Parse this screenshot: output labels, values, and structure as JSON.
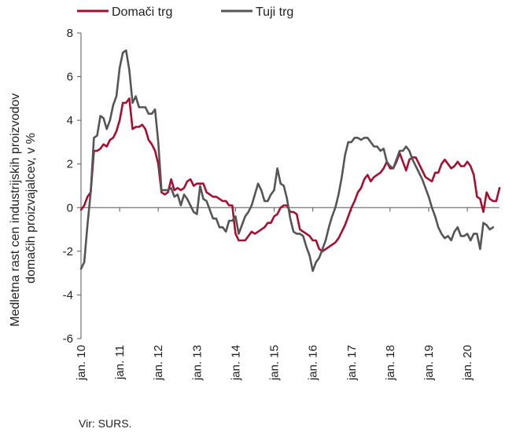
{
  "chart_data": {
    "type": "line",
    "xlabel": "",
    "ylabel": "Medletna rast cen industrijskih proizvodov domačih proizvajalcev, v %",
    "ylabel_lines": [
      "Medletna rast cen industrijskih proizvodov",
      "domačih proizvajalcev, v %"
    ],
    "ylim": [
      -6,
      8
    ],
    "yticks": [
      -6,
      -4,
      -2,
      0,
      2,
      4,
      6,
      8
    ],
    "xlim": [
      0,
      130
    ],
    "xticks": [
      {
        "label": "jan. 10",
        "x": 0
      },
      {
        "label": "jan. 11",
        "x": 12
      },
      {
        "label": "jan. 12",
        "x": 24
      },
      {
        "label": "jan. 13",
        "x": 36
      },
      {
        "label": "jan. 14",
        "x": 48
      },
      {
        "label": "jan. 15",
        "x": 60
      },
      {
        "label": "jan. 16",
        "x": 72
      },
      {
        "label": "jan. 17",
        "x": 84
      },
      {
        "label": "jan. 18",
        "x": 96
      },
      {
        "label": "jan. 19",
        "x": 108
      },
      {
        "label": "jan. 20",
        "x": 120
      }
    ],
    "legend_position": "top-left",
    "grid": false,
    "series": [
      {
        "name": "Domači trg",
        "color": "#a50f32",
        "values": [
          -0.1,
          0.1,
          0.5,
          0.7,
          2.6,
          2.6,
          2.7,
          2.9,
          2.8,
          3.1,
          3.2,
          3.5,
          4.0,
          4.8,
          4.8,
          5.0,
          3.6,
          3.7,
          3.7,
          3.8,
          3.6,
          3.1,
          2.9,
          2.6,
          2.0,
          0.7,
          0.6,
          0.7,
          1.3,
          0.8,
          0.9,
          0.8,
          0.9,
          1.2,
          1.3,
          1.0,
          1.1,
          1.1,
          1.1,
          0.7,
          0.6,
          0.5,
          0.5,
          0.4,
          0.3,
          0.3,
          0.1,
          0.1,
          -1.2,
          -1.5,
          -1.5,
          -1.5,
          -1.3,
          -1.1,
          -1.2,
          -1.1,
          -1.0,
          -0.9,
          -0.7,
          -0.7,
          -0.4,
          -0.3,
          0.0,
          0.1,
          0.1,
          -0.2,
          -0.2,
          -0.3,
          -1.0,
          -1.1,
          -1.2,
          -1.3,
          -1.5,
          -1.5,
          -1.9,
          -2.0,
          -1.9,
          -1.8,
          -1.7,
          -1.6,
          -1.4,
          -1.1,
          -0.8,
          -0.4,
          0.0,
          0.3,
          0.7,
          0.9,
          1.3,
          1.5,
          1.2,
          1.4,
          1.5,
          1.6,
          1.8,
          2.1,
          1.8,
          1.8,
          2.1,
          2.5,
          2.1,
          1.7,
          2.2,
          2.3,
          2.3,
          2.0,
          1.7,
          1.4,
          1.3,
          1.2,
          1.6,
          1.6,
          2.0,
          2.2,
          2.0,
          1.8,
          1.9,
          2.1,
          1.9,
          1.9,
          2.1,
          1.9,
          1.5,
          0.5,
          0.4,
          -0.2,
          0.7,
          0.4,
          0.3,
          0.3,
          0.9
        ]
      },
      {
        "name": "Tuji trg",
        "color": "#555555",
        "values": [
          -2.8,
          -2.5,
          -0.8,
          0.7,
          3.2,
          3.3,
          4.2,
          4.1,
          3.6,
          4.0,
          4.7,
          5.1,
          6.4,
          7.1,
          7.2,
          6.3,
          4.8,
          5.1,
          4.6,
          4.6,
          4.6,
          4.3,
          4.3,
          4.5,
          3.0,
          0.8,
          0.8,
          0.8,
          0.9,
          0.5,
          0.6,
          0.1,
          0.6,
          0.4,
          0.1,
          -0.2,
          -0.3,
          1.0,
          0.4,
          0.3,
          -0.1,
          -0.5,
          -0.5,
          -0.9,
          -0.9,
          -1.1,
          -0.6,
          -0.6,
          -0.4,
          -1.2,
          -0.8,
          -0.4,
          -0.2,
          0.1,
          0.6,
          1.1,
          0.8,
          0.3,
          0.3,
          0.6,
          0.8,
          1.8,
          1.1,
          1.0,
          0.4,
          -0.5,
          -1.1,
          -1.2,
          -1.2,
          -1.3,
          -1.8,
          -2.2,
          -2.9,
          -2.5,
          -2.3,
          -1.9,
          -1.5,
          -0.9,
          -0.4,
          0.0,
          0.6,
          1.4,
          2.4,
          3.0,
          3.0,
          3.2,
          3.2,
          3.1,
          3.2,
          3.2,
          3.0,
          2.8,
          2.8,
          2.6,
          2.7,
          2.1,
          1.9,
          1.8,
          2.2,
          2.6,
          2.6,
          2.8,
          2.6,
          2.2,
          1.9,
          1.6,
          1.3,
          0.9,
          0.5,
          0.0,
          -0.4,
          -0.9,
          -1.2,
          -1.4,
          -1.3,
          -1.5,
          -1.1,
          -0.9,
          -1.3,
          -1.3,
          -1.2,
          -1.5,
          -1.2,
          -1.2,
          -1.9,
          -0.7,
          -0.8,
          -1.0,
          -0.9
        ]
      }
    ]
  },
  "source_note": "Vir: SURS."
}
